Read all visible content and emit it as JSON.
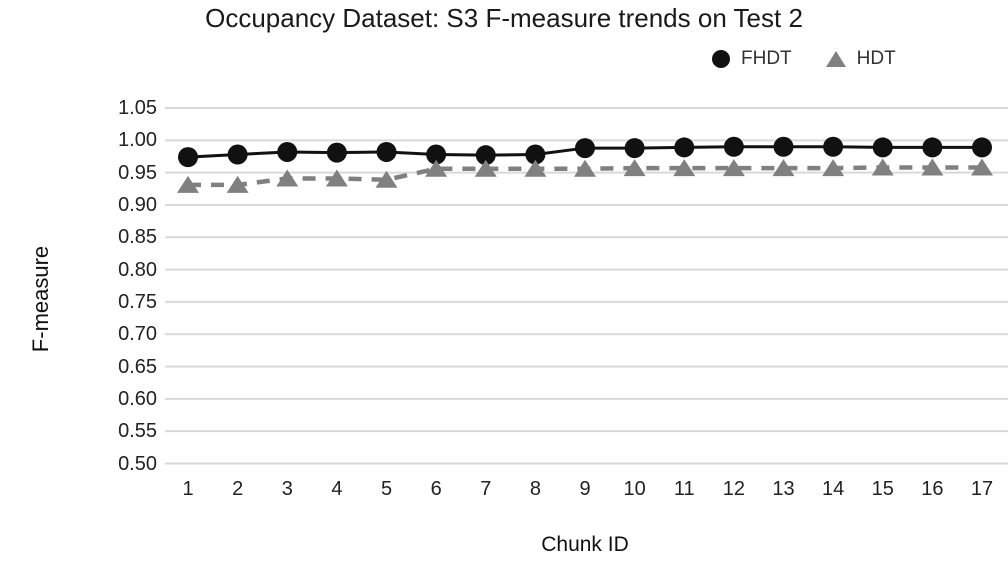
{
  "chart_data": {
    "type": "line",
    "title": "Occupancy Dataset: S3 F-measure trends on Test 2",
    "xlabel": "Chunk ID",
    "ylabel": "F-measure",
    "categories": [
      1,
      2,
      3,
      4,
      5,
      6,
      7,
      8,
      9,
      10,
      11,
      12,
      13,
      14,
      15,
      16,
      17
    ],
    "series": [
      {
        "name": "FHDT",
        "marker": "circle",
        "line_style": "solid",
        "color": "#111111",
        "values": [
          0.974,
          0.978,
          0.982,
          0.981,
          0.982,
          0.978,
          0.977,
          0.978,
          0.988,
          0.988,
          0.989,
          0.99,
          0.99,
          0.99,
          0.989,
          0.989,
          0.989
        ]
      },
      {
        "name": "HDT",
        "marker": "triangle",
        "line_style": "dashed",
        "color": "#808080",
        "values": [
          0.931,
          0.931,
          0.941,
          0.941,
          0.939,
          0.956,
          0.956,
          0.956,
          0.956,
          0.957,
          0.957,
          0.957,
          0.957,
          0.957,
          0.958,
          0.958,
          0.958
        ]
      }
    ],
    "ylim": [
      0.5,
      1.05
    ],
    "ytick_step": 0.05,
    "yticks": [
      "1.05",
      "1.00",
      "0.95",
      "0.90",
      "0.85",
      "0.80",
      "0.75",
      "0.70",
      "0.65",
      "0.60",
      "0.55",
      "0.50"
    ],
    "grid": true,
    "legend_position": "top-right",
    "colors": {
      "grid": "#d9d9d9",
      "tick_text": "#222222",
      "title_text": "#1a1a1a"
    }
  }
}
